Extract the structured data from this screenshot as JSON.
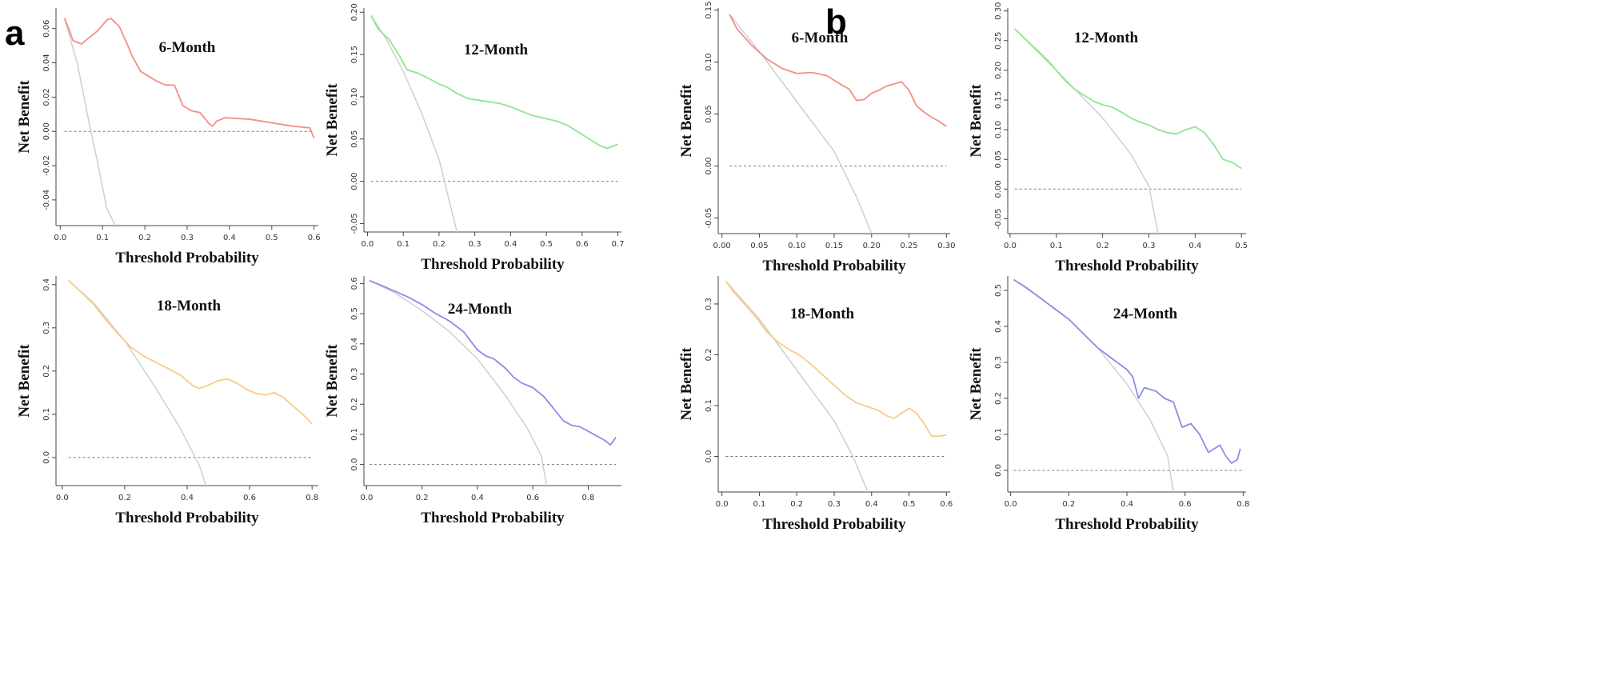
{
  "panels": [
    {
      "letter": "a"
    },
    {
      "letter": "b"
    }
  ],
  "chart_data": [
    {
      "type": "line",
      "panel": "a",
      "title": "6-Month",
      "xlabel": "Threshold Probability",
      "ylabel": "Net Benefit",
      "xlim": [
        -0.01,
        0.61
      ],
      "ylim": [
        -0.055,
        0.072
      ],
      "xticks": [
        "0.0",
        "0.1",
        "0.2",
        "0.3",
        "0.4",
        "0.5",
        "0.6"
      ],
      "yticks": [
        "-0.04",
        "-0.02",
        "0.00",
        "0.02",
        "0.04",
        "0.06"
      ],
      "color": "#F28E86",
      "series": [
        {
          "name": "model",
          "x": [
            0.01,
            0.02,
            0.03,
            0.05,
            0.07,
            0.09,
            0.11,
            0.12,
            0.14,
            0.16,
            0.17,
            0.19,
            0.21,
            0.23,
            0.25,
            0.27,
            0.29,
            0.31,
            0.33,
            0.35,
            0.36,
            0.37,
            0.39,
            0.45,
            0.5,
            0.55,
            0.59,
            0.6
          ],
          "y": [
            0.066,
            0.06,
            0.053,
            0.051,
            0.055,
            0.059,
            0.065,
            0.066,
            0.061,
            0.05,
            0.044,
            0.035,
            0.032,
            0.029,
            0.027,
            0.027,
            0.015,
            0.012,
            0.011,
            0.005,
            0.003,
            0.006,
            0.008,
            0.007,
            0.005,
            0.003,
            0.002,
            -0.004
          ]
        },
        {
          "name": "treat-all",
          "x": [
            0.01,
            0.04,
            0.07,
            0.09,
            0.11,
            0.13
          ],
          "y": [
            0.066,
            0.04,
            0.003,
            -0.02,
            -0.045,
            -0.055
          ]
        },
        {
          "name": "none",
          "x": [
            0.01,
            0.6
          ],
          "y": [
            0,
            0
          ]
        }
      ]
    },
    {
      "type": "line",
      "panel": "a",
      "title": "12-Month",
      "xlabel": "Threshold Probability",
      "ylabel": "Net Benefit",
      "xlim": [
        -0.01,
        0.71
      ],
      "ylim": [
        -0.06,
        0.205
      ],
      "xticks": [
        "0.0",
        "0.1",
        "0.2",
        "0.3",
        "0.4",
        "0.5",
        "0.6",
        "0.7"
      ],
      "yticks": [
        "-0.05",
        "0.00",
        "0.05",
        "0.10",
        "0.15",
        "0.20"
      ],
      "color": "#8EE68E",
      "series": [
        {
          "name": "model",
          "x": [
            0.01,
            0.03,
            0.06,
            0.09,
            0.11,
            0.14,
            0.17,
            0.2,
            0.22,
            0.25,
            0.28,
            0.31,
            0.34,
            0.37,
            0.4,
            0.43,
            0.46,
            0.5,
            0.53,
            0.56,
            0.59,
            0.62,
            0.65,
            0.67,
            0.69,
            0.7
          ],
          "y": [
            0.196,
            0.18,
            0.168,
            0.148,
            0.132,
            0.128,
            0.122,
            0.115,
            0.112,
            0.104,
            0.098,
            0.096,
            0.094,
            0.092,
            0.088,
            0.083,
            0.078,
            0.074,
            0.071,
            0.066,
            0.058,
            0.05,
            0.042,
            0.039,
            0.042,
            0.044
          ]
        },
        {
          "name": "treat-all",
          "x": [
            0.01,
            0.05,
            0.1,
            0.15,
            0.2,
            0.25
          ],
          "y": [
            0.196,
            0.17,
            0.13,
            0.082,
            0.026,
            -0.06
          ]
        },
        {
          "name": "none",
          "x": [
            0.01,
            0.7
          ],
          "y": [
            0,
            0
          ]
        }
      ]
    },
    {
      "type": "line",
      "panel": "a",
      "title": "18-Month",
      "xlabel": "Threshold Probability",
      "ylabel": "Net Benefit",
      "xlim": [
        -0.02,
        0.82
      ],
      "ylim": [
        -0.065,
        0.42
      ],
      "xticks": [
        "0.0",
        "0.2",
        "0.4",
        "0.6",
        "0.8"
      ],
      "yticks": [
        "0.0",
        "0.1",
        "0.2",
        "0.3",
        "0.4"
      ],
      "color": "#F7CC84",
      "series": [
        {
          "name": "model",
          "x": [
            0.02,
            0.05,
            0.1,
            0.14,
            0.18,
            0.22,
            0.26,
            0.3,
            0.34,
            0.38,
            0.42,
            0.44,
            0.47,
            0.5,
            0.53,
            0.56,
            0.59,
            0.62,
            0.65,
            0.68,
            0.71,
            0.74,
            0.77,
            0.8
          ],
          "y": [
            0.41,
            0.39,
            0.355,
            0.318,
            0.285,
            0.255,
            0.235,
            0.22,
            0.205,
            0.19,
            0.165,
            0.16,
            0.168,
            0.178,
            0.182,
            0.172,
            0.158,
            0.148,
            0.145,
            0.15,
            0.138,
            0.118,
            0.1,
            0.078
          ]
        },
        {
          "name": "treat-all",
          "x": [
            0.02,
            0.1,
            0.2,
            0.3,
            0.38,
            0.44,
            0.46
          ],
          "y": [
            0.41,
            0.358,
            0.27,
            0.16,
            0.065,
            -0.02,
            -0.065
          ]
        },
        {
          "name": "none",
          "x": [
            0.02,
            0.8
          ],
          "y": [
            0,
            0
          ]
        }
      ]
    },
    {
      "type": "line",
      "panel": "a",
      "title": "24-Month",
      "xlabel": "Threshold Probability",
      "ylabel": "Net Benefit",
      "xlim": [
        -0.01,
        0.92
      ],
      "ylim": [
        -0.07,
        0.625
      ],
      "xticks": [
        "0.0",
        "0.2",
        "0.4",
        "0.6",
        "0.8"
      ],
      "yticks": [
        "0.0",
        "0.1",
        "0.2",
        "0.3",
        "0.4",
        "0.5",
        "0.6"
      ],
      "color": "#8A8CE8",
      "series": [
        {
          "name": "model",
          "x": [
            0.01,
            0.05,
            0.1,
            0.15,
            0.2,
            0.25,
            0.3,
            0.35,
            0.4,
            0.43,
            0.46,
            0.5,
            0.53,
            0.56,
            0.6,
            0.64,
            0.68,
            0.71,
            0.74,
            0.77,
            0.8,
            0.83,
            0.86,
            0.88,
            0.9
          ],
          "y": [
            0.61,
            0.595,
            0.575,
            0.555,
            0.53,
            0.5,
            0.475,
            0.44,
            0.38,
            0.36,
            0.35,
            0.32,
            0.29,
            0.27,
            0.255,
            0.225,
            0.18,
            0.145,
            0.13,
            0.125,
            0.11,
            0.095,
            0.08,
            0.065,
            0.09
          ]
        },
        {
          "name": "treat-all",
          "x": [
            0.01,
            0.1,
            0.2,
            0.3,
            0.4,
            0.5,
            0.58,
            0.63,
            0.65
          ],
          "y": [
            0.61,
            0.57,
            0.51,
            0.44,
            0.35,
            0.23,
            0.12,
            0.03,
            -0.07
          ]
        },
        {
          "name": "none",
          "x": [
            0.01,
            0.9
          ],
          "y": [
            0,
            0
          ]
        }
      ]
    },
    {
      "type": "line",
      "panel": "b",
      "title": "6-Month",
      "xlabel": "Threshold Probability",
      "ylabel": "Net Benefit",
      "xlim": [
        -0.005,
        0.305
      ],
      "ylim": [
        -0.065,
        0.152
      ],
      "xticks": [
        "0.00",
        "0.05",
        "0.10",
        "0.15",
        "0.20",
        "0.25",
        "0.30"
      ],
      "yticks": [
        "-0.05",
        "0.00",
        "0.05",
        "0.10",
        "0.15"
      ],
      "color": "#F28E86",
      "series": [
        {
          "name": "model",
          "x": [
            0.01,
            0.02,
            0.04,
            0.06,
            0.08,
            0.1,
            0.12,
            0.14,
            0.16,
            0.17,
            0.18,
            0.19,
            0.2,
            0.21,
            0.22,
            0.23,
            0.24,
            0.25,
            0.26,
            0.27,
            0.28,
            0.29,
            0.3
          ],
          "y": [
            0.146,
            0.132,
            0.116,
            0.103,
            0.094,
            0.089,
            0.09,
            0.087,
            0.078,
            0.074,
            0.063,
            0.064,
            0.07,
            0.073,
            0.077,
            0.079,
            0.081,
            0.073,
            0.058,
            0.052,
            0.047,
            0.043,
            0.038
          ]
        },
        {
          "name": "treat-all",
          "x": [
            0.01,
            0.05,
            0.1,
            0.15,
            0.18,
            0.2
          ],
          "y": [
            0.146,
            0.11,
            0.062,
            0.014,
            -0.03,
            -0.065
          ]
        },
        {
          "name": "none",
          "x": [
            0.01,
            0.3
          ],
          "y": [
            0,
            0
          ]
        }
      ]
    },
    {
      "type": "line",
      "panel": "b",
      "title": "12-Month",
      "xlabel": "Threshold Probability",
      "ylabel": "Net Benefit",
      "xlim": [
        -0.005,
        0.51
      ],
      "ylim": [
        -0.075,
        0.305
      ],
      "xticks": [
        "0.0",
        "0.1",
        "0.2",
        "0.3",
        "0.4",
        "0.5"
      ],
      "yticks": [
        "-0.05",
        "0.00",
        "0.05",
        "0.10",
        "0.15",
        "0.20",
        "0.25",
        "0.30"
      ],
      "color": "#8EE68E",
      "series": [
        {
          "name": "model",
          "x": [
            0.01,
            0.03,
            0.05,
            0.08,
            0.1,
            0.12,
            0.14,
            0.16,
            0.18,
            0.2,
            0.22,
            0.24,
            0.26,
            0.28,
            0.3,
            0.32,
            0.34,
            0.36,
            0.38,
            0.4,
            0.42,
            0.44,
            0.46,
            0.48,
            0.49,
            0.5
          ],
          "y": [
            0.27,
            0.255,
            0.24,
            0.218,
            0.2,
            0.182,
            0.168,
            0.158,
            0.148,
            0.142,
            0.138,
            0.13,
            0.12,
            0.113,
            0.108,
            0.1,
            0.095,
            0.093,
            0.1,
            0.105,
            0.095,
            0.075,
            0.05,
            0.045,
            0.04,
            0.035
          ]
        },
        {
          "name": "treat-all",
          "x": [
            0.01,
            0.1,
            0.2,
            0.26,
            0.3,
            0.32
          ],
          "y": [
            0.27,
            0.2,
            0.12,
            0.06,
            0.005,
            -0.075
          ]
        },
        {
          "name": "none",
          "x": [
            0.01,
            0.5
          ],
          "y": [
            0,
            0
          ]
        }
      ]
    },
    {
      "type": "line",
      "panel": "b",
      "title": "18-Month",
      "xlabel": "Threshold Probability",
      "ylabel": "Net Benefit",
      "xlim": [
        -0.01,
        0.61
      ],
      "ylim": [
        -0.07,
        0.355
      ],
      "xticks": [
        "0.0",
        "0.1",
        "0.2",
        "0.3",
        "0.4",
        "0.5",
        "0.6"
      ],
      "yticks": [
        "0.0",
        "0.1",
        "0.2",
        "0.3"
      ],
      "color": "#F7CC84",
      "series": [
        {
          "name": "model",
          "x": [
            0.01,
            0.03,
            0.06,
            0.09,
            0.12,
            0.15,
            0.18,
            0.21,
            0.24,
            0.27,
            0.3,
            0.33,
            0.36,
            0.39,
            0.42,
            0.44,
            0.46,
            0.48,
            0.5,
            0.52,
            0.54,
            0.56,
            0.58,
            0.6
          ],
          "y": [
            0.345,
            0.325,
            0.3,
            0.275,
            0.245,
            0.225,
            0.21,
            0.198,
            0.18,
            0.16,
            0.14,
            0.12,
            0.105,
            0.098,
            0.09,
            0.08,
            0.075,
            0.085,
            0.095,
            0.085,
            0.065,
            0.04,
            0.04,
            0.042
          ]
        },
        {
          "name": "treat-all",
          "x": [
            0.01,
            0.1,
            0.2,
            0.3,
            0.35,
            0.39
          ],
          "y": [
            0.345,
            0.27,
            0.17,
            0.07,
            0.0,
            -0.07
          ]
        },
        {
          "name": "none",
          "x": [
            0.01,
            0.6
          ],
          "y": [
            0,
            0
          ]
        }
      ]
    },
    {
      "type": "line",
      "panel": "b",
      "title": "24-Month",
      "xlabel": "Threshold Probability",
      "ylabel": "Net Benefit",
      "xlim": [
        -0.01,
        0.81
      ],
      "ylim": [
        -0.06,
        0.54
      ],
      "xticks": [
        "0.0",
        "0.2",
        "0.4",
        "0.6",
        "0.8"
      ],
      "yticks": [
        "0.0",
        "0.1",
        "0.2",
        "0.3",
        "0.4",
        "0.5"
      ],
      "color": "#8A8CE8",
      "series": [
        {
          "name": "model",
          "x": [
            0.01,
            0.05,
            0.1,
            0.15,
            0.2,
            0.25,
            0.3,
            0.35,
            0.4,
            0.42,
            0.44,
            0.46,
            0.5,
            0.53,
            0.56,
            0.59,
            0.62,
            0.65,
            0.68,
            0.7,
            0.72,
            0.74,
            0.76,
            0.78,
            0.79
          ],
          "y": [
            0.53,
            0.51,
            0.48,
            0.45,
            0.42,
            0.38,
            0.34,
            0.31,
            0.28,
            0.26,
            0.2,
            0.23,
            0.22,
            0.2,
            0.19,
            0.12,
            0.13,
            0.1,
            0.05,
            0.06,
            0.07,
            0.04,
            0.02,
            0.03,
            0.06
          ]
        },
        {
          "name": "treat-all",
          "x": [
            0.01,
            0.1,
            0.2,
            0.3,
            0.4,
            0.48,
            0.54,
            0.56
          ],
          "y": [
            0.53,
            0.48,
            0.42,
            0.34,
            0.24,
            0.14,
            0.04,
            -0.06
          ]
        },
        {
          "name": "none",
          "x": [
            0.01,
            0.8
          ],
          "y": [
            0,
            0
          ]
        }
      ]
    }
  ]
}
